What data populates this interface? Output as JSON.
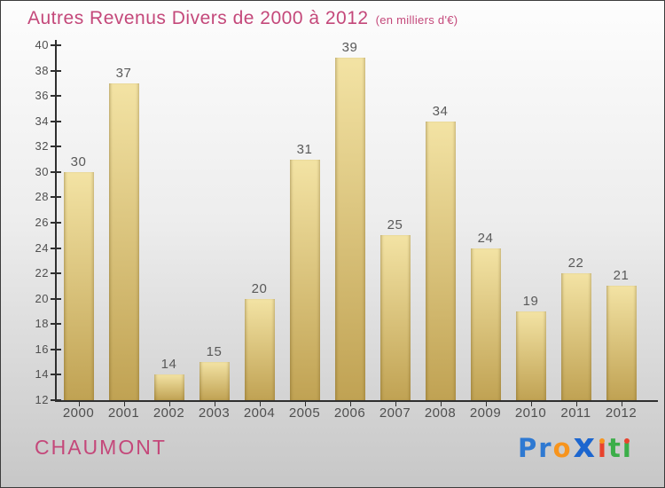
{
  "header": {
    "title": "Autres Revenus Divers de 2000 à 2012",
    "subtitle": "(en milliers d'€)"
  },
  "chart_data": {
    "type": "bar",
    "title": "Autres Revenus Divers de 2000 à 2012",
    "subtitle": "(en milliers d'€)",
    "categories": [
      "2000",
      "2001",
      "2002",
      "2003",
      "2004",
      "2005",
      "2006",
      "2007",
      "2008",
      "2009",
      "2010",
      "2011",
      "2012"
    ],
    "values": [
      30,
      37,
      14,
      15,
      20,
      31,
      39,
      25,
      34,
      24,
      19,
      22,
      21
    ],
    "value_labels_shown": true,
    "xlabel": "",
    "ylabel": "",
    "ylim": [
      12,
      40
    ],
    "yticks": [
      12,
      14,
      16,
      18,
      20,
      22,
      24,
      26,
      28,
      30,
      32,
      34,
      36,
      38,
      40
    ],
    "grid": false,
    "legend": "none",
    "bar_color_top": "#F3E3A4",
    "bar_color_bottom": "#C0A253"
  },
  "footer": {
    "location": "CHAUMONT",
    "logo_text": "Proxiti",
    "logo_letters": [
      {
        "ch": "P",
        "color": "#2E79D2"
      },
      {
        "ch": "r",
        "color": "#2E79D2"
      },
      {
        "ch": "o",
        "color": "#F7941D"
      },
      {
        "ch": "x",
        "color": "#1C66CF",
        "big": true
      },
      {
        "ch": "i",
        "color": "#E8432D",
        "dot": "#F7941D"
      },
      {
        "ch": "t",
        "color": "#3BAE49"
      },
      {
        "ch": "i",
        "color": "#3BAE49",
        "dot": "#E8432D"
      }
    ]
  },
  "theme": {
    "bg_top": "#FDFDFD",
    "bg_bottom": "#C7C7C7",
    "border_color": "#3C3C3C",
    "accent": "#C4487A",
    "axis_color": "#2F2F2F",
    "label_color": "#4F4F4F",
    "value_color": "#595959",
    "bar_top": "#F3E3A4",
    "bar_bottom": "#C0A253"
  }
}
